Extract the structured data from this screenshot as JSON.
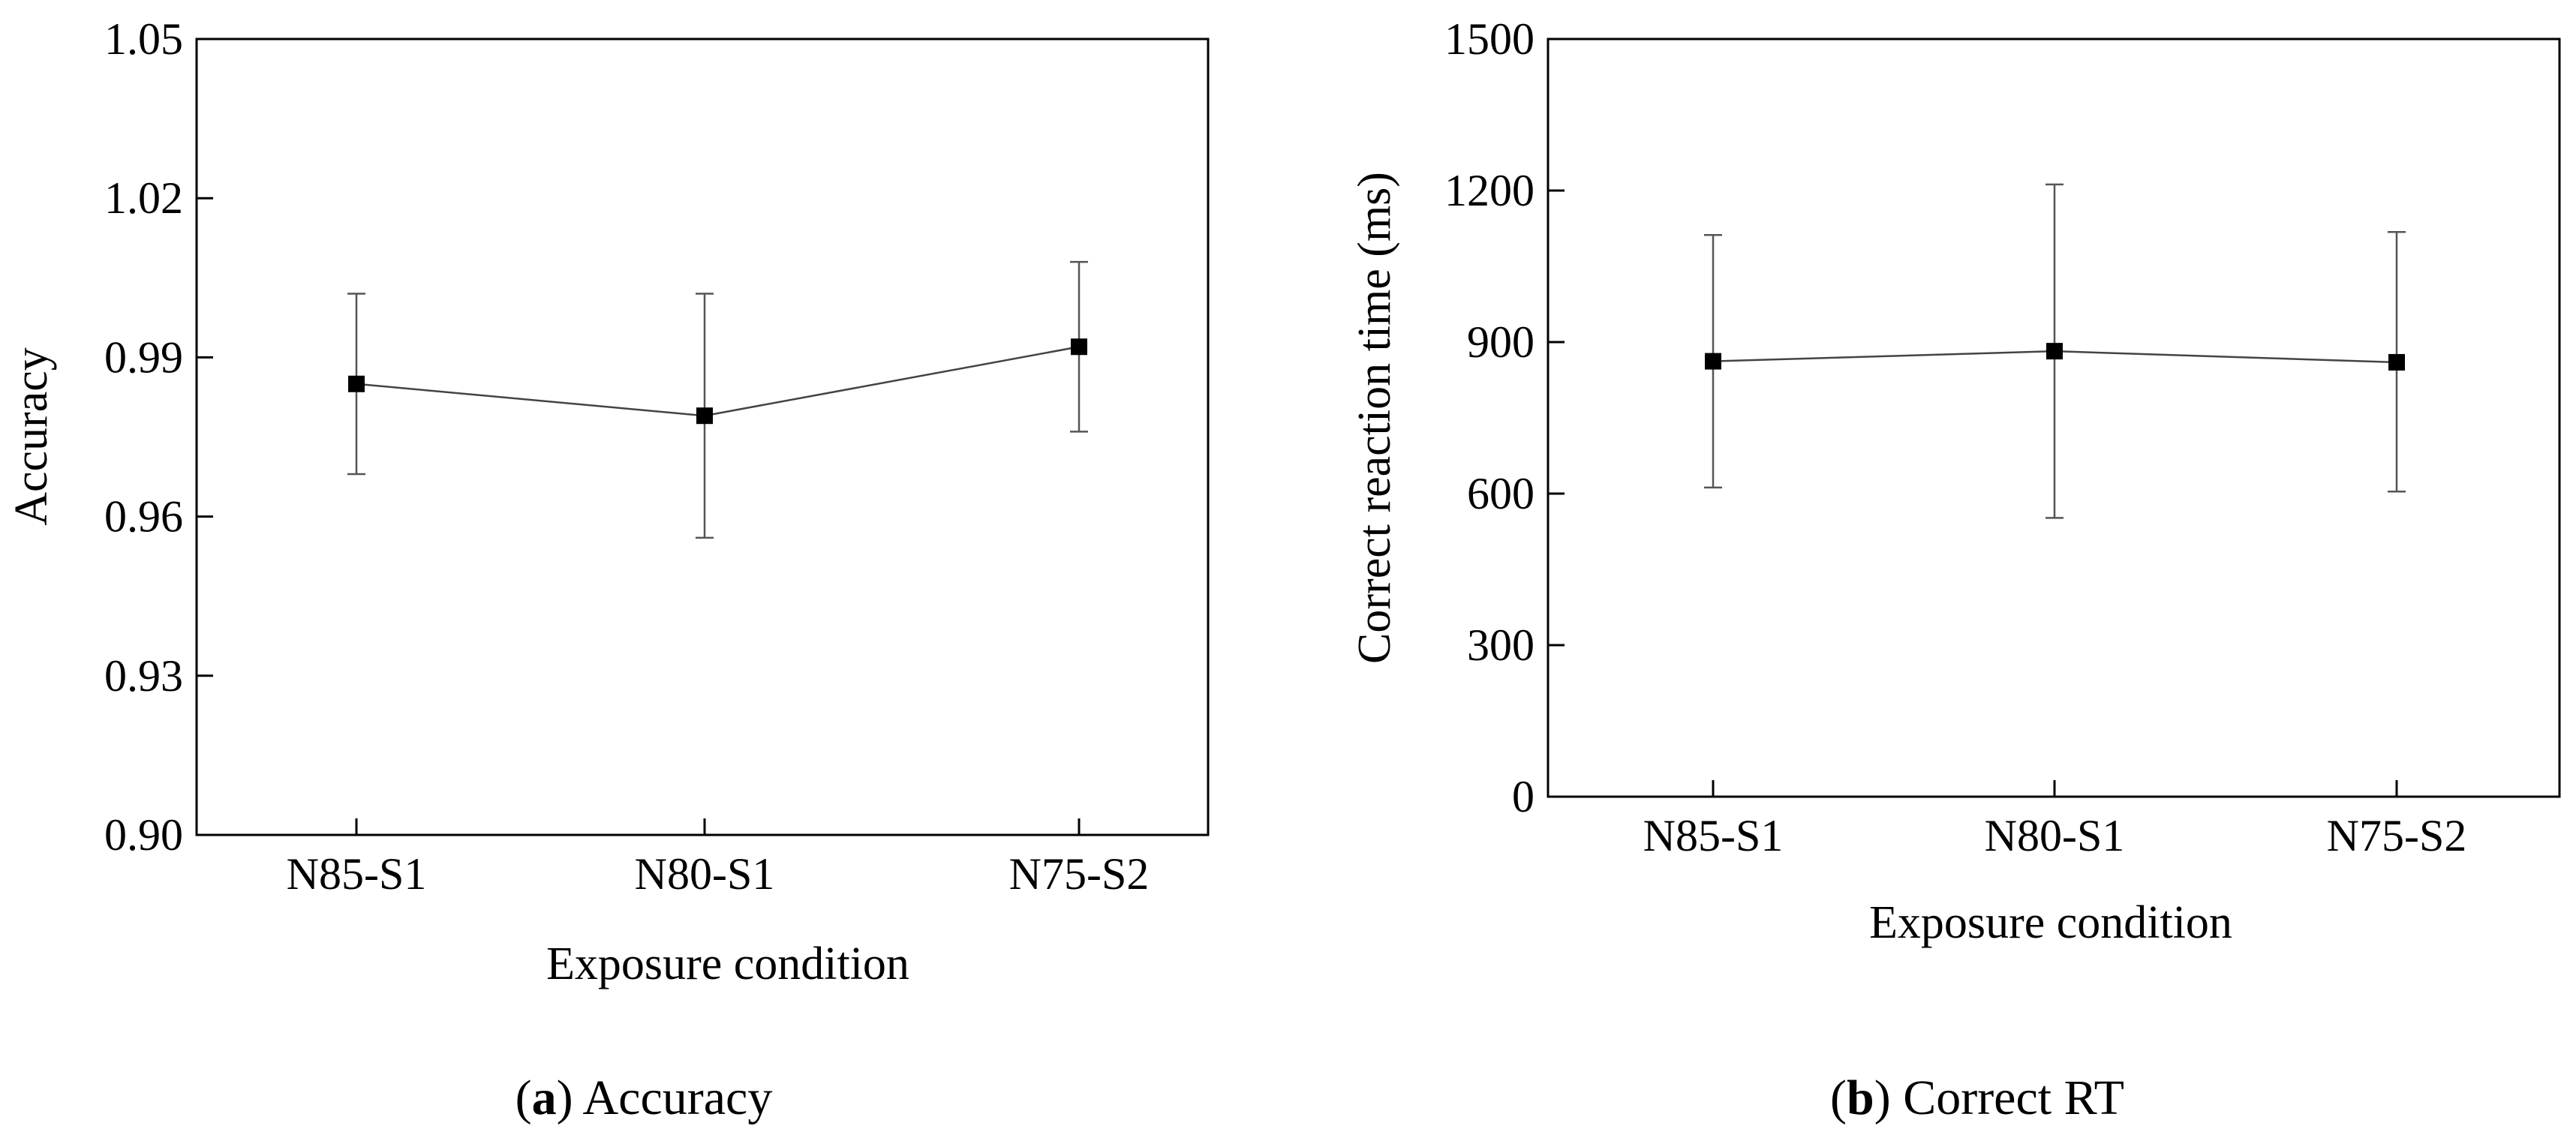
{
  "chart_data": [
    {
      "type": "line",
      "title": "",
      "xlabel": "Exposure condition",
      "ylabel": "Accuracy",
      "categories": [
        "N85-S1",
        "N80-S1",
        "N75-S2"
      ],
      "series": [
        {
          "name": "Accuracy",
          "values": [
            0.985,
            0.979,
            0.992
          ],
          "error_low": [
            0.968,
            0.956,
            0.976
          ],
          "error_high": [
            1.002,
            1.002,
            1.008
          ]
        }
      ],
      "ylim": [
        0.9,
        1.05
      ],
      "yticks": [
        0.9,
        0.93,
        0.96,
        0.99,
        1.02,
        1.05
      ],
      "ytick_labels": [
        "0.90",
        "0.93",
        "0.96",
        "0.99",
        "1.02",
        "1.05"
      ],
      "grid": false,
      "caption_letter": "a",
      "caption_text": " Accuracy"
    },
    {
      "type": "line",
      "title": "",
      "xlabel": "Exposure condition",
      "ylabel": "Correct reaction time (ms)",
      "categories": [
        "N85-S1",
        "N80-S1",
        "N75-S2"
      ],
      "series": [
        {
          "name": "Correct RT",
          "values": [
            862,
            882,
            860
          ],
          "error_low": [
            612,
            552,
            604
          ],
          "error_high": [
            1112,
            1212,
            1118
          ]
        }
      ],
      "ylim": [
        0,
        1500
      ],
      "yticks": [
        0,
        300,
        600,
        900,
        1200,
        1500
      ],
      "ytick_labels": [
        "0",
        "300",
        "600",
        "900",
        "1200",
        "1500"
      ],
      "grid": false,
      "caption_letter": "b",
      "caption_text": " Correct RT"
    }
  ]
}
